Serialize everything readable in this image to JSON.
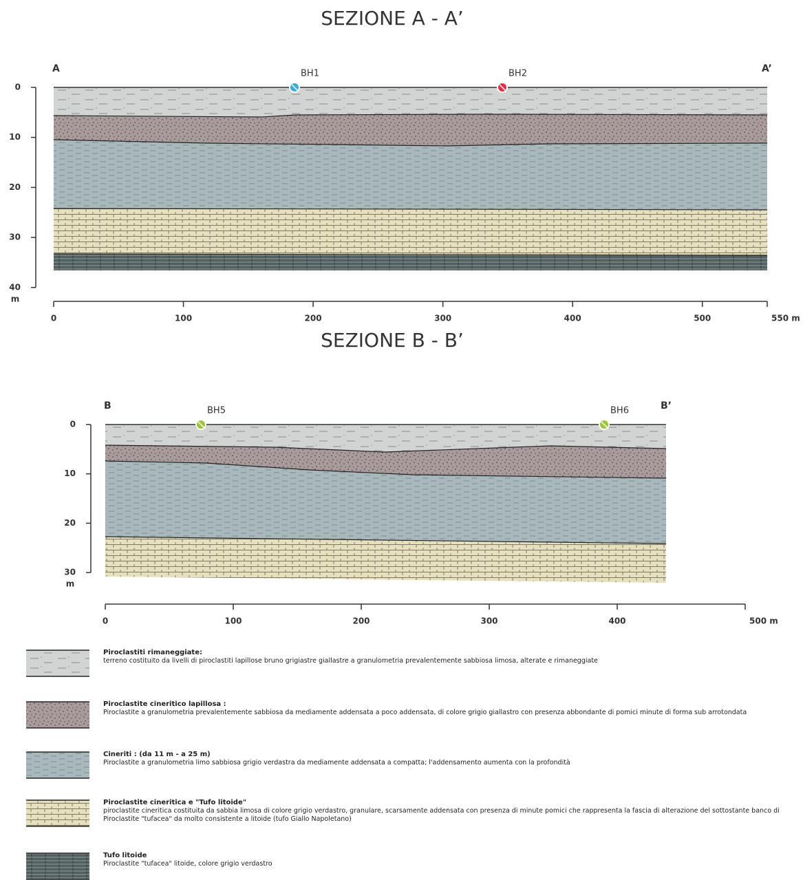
{
  "sections": [
    {
      "title": "SEZIONE A - A’",
      "start_label": "A",
      "end_label": "A’",
      "boreholes": [
        {
          "label": "BH1",
          "color": "#3aaed8"
        },
        {
          "label": "BH2",
          "color": "#e0304a"
        }
      ],
      "depth_ticks": [
        0,
        10,
        20,
        30,
        40
      ],
      "depth_unit": "m",
      "distance_ticks": [
        0,
        100,
        200,
        300,
        400,
        500,
        {
          "value": 550,
          "label": "550 m"
        }
      ]
    },
    {
      "title": "SEZIONE B - B’",
      "start_label": "B",
      "end_label": "B’",
      "boreholes": [
        {
          "label": "BH5",
          "color": "#9cc43c"
        },
        {
          "label": "BH6",
          "color": "#9cc43c"
        }
      ],
      "depth_ticks": [
        0,
        10,
        20,
        30
      ],
      "depth_unit": "m",
      "distance_ticks": [
        0,
        100,
        200,
        300,
        400,
        {
          "value": 500,
          "label": "500 m"
        }
      ]
    }
  ],
  "legend": [
    {
      "title": "Piroclastiti rimaneggiate:",
      "description": "terreno costituito da livelli di piroclastiti lapillose bruno grigiastre giallastre a granulometria prevalentemente sabbiosa limosa, alterate e rimaneggiate"
    },
    {
      "title": "Piroclastite cineritico lapillosa :",
      "description": "Piroclastite a granulometria prevalentemente sabbiosa da mediamente addensata a poco addensata, di colore grigio giallastro con presenza abbondante di pomici minute di forma sub arrotondata"
    },
    {
      "title": "Cineriti : (da 11 m - a 25 m)",
      "description": "Piroclastite a granulometria limo sabbiosa grigio verdastra da mediamente addensata a compatta; l'addensamento aumenta con la profondità"
    },
    {
      "title": "Piroclastite cineritica e \"Tufo litoide\"",
      "description": "piroclastite cineritica costituita da sabbia limosa di colore grigio verdastro, granulare, scarsamente addensata con presenza di minute pomici che rappresenta la fascia di alterazione del sottostante banco di Piroclastite \"tufacea\" da molto consistente a litoide (tufo Giallo Napoletano)"
    },
    {
      "title": "Tufo litoide",
      "description": "Piroclastite \"tufacea\" litoide, colore grigio verdastro"
    }
  ]
}
